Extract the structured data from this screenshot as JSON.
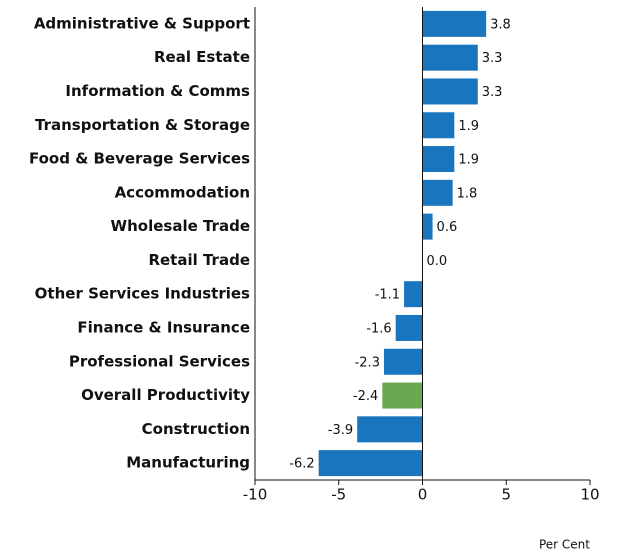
{
  "chart_data": {
    "type": "hbar",
    "categories": [
      "Administrative & Support",
      "Real Estate",
      "Information & Comms",
      "Transportation & Storage",
      "Food & Beverage Services",
      "Accommodation",
      "Wholesale Trade",
      "Retail Trade",
      "Other Services Industries",
      "Finance & Insurance",
      "Professional Services",
      "Overall Productivity",
      "Construction",
      "Manufacturing"
    ],
    "values": [
      3.8,
      3.3,
      3.3,
      1.9,
      1.9,
      1.8,
      0.6,
      0.0,
      -1.1,
      -1.6,
      -2.3,
      -2.4,
      -3.9,
      -6.2
    ],
    "value_labels": [
      "3.8",
      "3.3",
      "3.3",
      "1.9",
      "1.9",
      "1.8",
      "0.6",
      "0.0",
      "-1.1",
      "-1.6",
      "-2.3",
      "-2.4",
      "-3.9",
      "-6.2"
    ],
    "colors": [
      "#1a75bf",
      "#1a75bf",
      "#1a75bf",
      "#1a75bf",
      "#1a75bf",
      "#1a75bf",
      "#1a75bf",
      "#1a75bf",
      "#1a75bf",
      "#1a75bf",
      "#1a75bf",
      "#6aa84f",
      "#1a75bf",
      "#1a75bf"
    ],
    "xlim": [
      -10,
      10
    ],
    "xticks": [
      -10,
      -5,
      0,
      5,
      10
    ],
    "x_label": "Per Cent"
  }
}
